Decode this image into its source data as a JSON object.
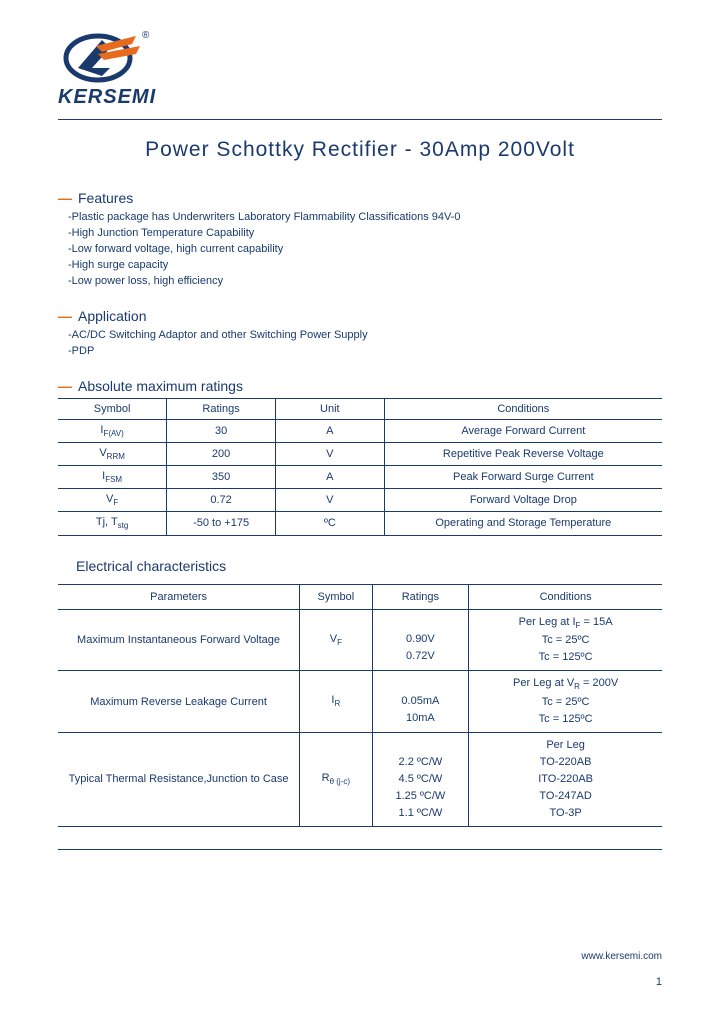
{
  "brand": {
    "name": "KERSEMI",
    "color_primary": "#1a3a6e",
    "color_accent": "#e86a1f"
  },
  "title": "Power Schottky Rectifier - 30Amp 200Volt",
  "sections": {
    "features_label": "Features",
    "features": [
      "Plastic package has Underwriters Laboratory Flammability Classifications 94V-0",
      "High Junction Temperature Capability",
      "Low forward voltage, high current capability",
      "High surge capacity",
      "Low power loss, high efficiency"
    ],
    "application_label": "Application",
    "applications": [
      "AC/DC Switching Adaptor and other Switching Power Supply",
      "PDP"
    ],
    "ratings_label": "Absolute maximum ratings",
    "elec_label": "Electrical characteristics"
  },
  "ratings_table": {
    "headers": [
      "Symbol",
      "Ratings",
      "Unit",
      "Conditions"
    ],
    "col_widths": [
      "18%",
      "18%",
      "18%",
      "46%"
    ],
    "rows": [
      {
        "symbol_html": "I<span class='sub'>F(AV)</span>",
        "rating": "30",
        "unit": "A",
        "cond": "Average Forward Current"
      },
      {
        "symbol_html": "V<span class='sub'>RRM</span>",
        "rating": "200",
        "unit": "V",
        "cond": "Repetitive Peak Reverse Voltage"
      },
      {
        "symbol_html": "I<span class='sub'>FSM</span>",
        "rating": "350",
        "unit": "A",
        "cond": "Peak Forward Surge Current"
      },
      {
        "symbol_html": "V<span class='sub'>F</span>",
        "rating": "0.72",
        "unit": "V",
        "cond": "Forward Voltage Drop"
      },
      {
        "symbol_html": "Tj, T<span class='sub'>stg</span>",
        "rating": "-50 to +175",
        "unit": "ºC",
        "cond": "Operating and Storage Temperature"
      }
    ]
  },
  "elec_table": {
    "headers": [
      "Parameters",
      "Symbol",
      "Ratings",
      "Conditions"
    ],
    "col_widths": [
      "40%",
      "12%",
      "16%",
      "32%"
    ],
    "rows": [
      {
        "param": "Maximum Instantaneous Forward Voltage",
        "symbol_html": "V<span class='sub'>F</span>",
        "ratings_lines": [
          "",
          "0.90V",
          "0.72V"
        ],
        "cond_lines_html": [
          "Per Leg at I<span class='sub'>F</span> = 15A",
          "Tc = 25ºC",
          "Tc = 125ºC"
        ]
      },
      {
        "param": "Maximum Reverse Leakage Current",
        "symbol_html": "I<span class='sub'>R</span>",
        "ratings_lines": [
          "",
          "0.05mA",
          "10mA"
        ],
        "cond_lines_html": [
          "Per Leg at V<span class='sub'>R</span> = 200V",
          "Tc = 25ºC",
          "Tc = 125ºC"
        ]
      },
      {
        "param": "Typical Thermal Resistance,Junction to Case",
        "symbol_html": "R<span class='sub'>θ (j-c)</span>",
        "ratings_lines": [
          "",
          "2.2 ºC/W",
          "4.5 ºC/W",
          "1.25 ºC/W",
          "1.1 ºC/W"
        ],
        "cond_lines_html": [
          "Per Leg",
          "TO-220AB",
          "ITO-220AB",
          "TO-247AD",
          "TO-3P"
        ]
      }
    ]
  },
  "footer": {
    "url": "www.kersemi.com",
    "page": "1"
  }
}
